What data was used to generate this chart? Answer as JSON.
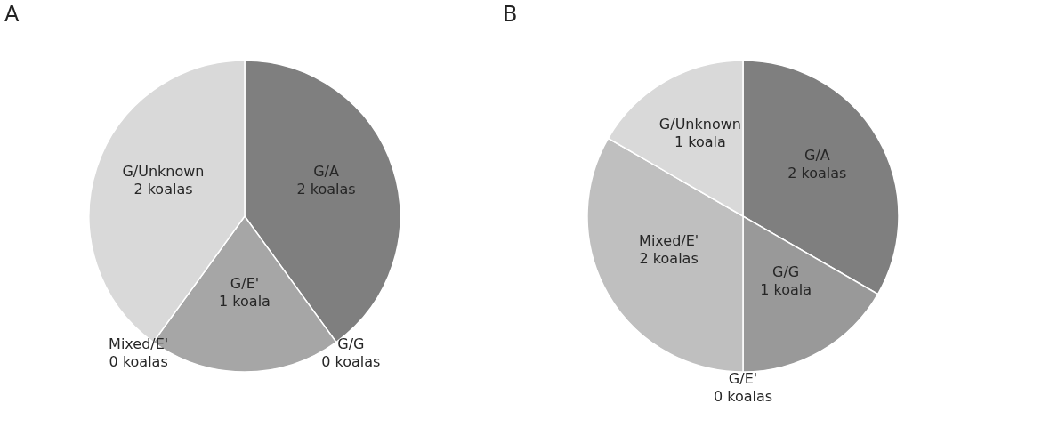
{
  "chart_data": [
    {
      "type": "pie",
      "title": "A",
      "categories": [
        "G/A",
        "G/G",
        "G/E'",
        "Mixed/E'",
        "G/Unknown"
      ],
      "values": [
        2,
        0,
        1,
        0,
        2
      ],
      "colors": [
        "#7f7f7f",
        "#999999",
        "#a6a6a6",
        "#bfbfbf",
        "#d9d9d9"
      ],
      "value_labels": [
        "2 koalas",
        "0 koalas",
        "1 koala",
        "0 koalas",
        "2 koalas"
      ]
    },
    {
      "type": "pie",
      "title": "B",
      "categories": [
        "G/A",
        "G/G",
        "G/E'",
        "Mixed/E'",
        "G/Unknown"
      ],
      "values": [
        2,
        1,
        0,
        2,
        1
      ],
      "colors": [
        "#7a7a7a",
        "#999999",
        "#a6a6a6",
        "#bdbdbd",
        "#d9d9d9"
      ],
      "value_labels": [
        "2 koalas",
        "1 koala",
        "0 koalas",
        "2 koalas",
        "1 koala"
      ]
    }
  ]
}
